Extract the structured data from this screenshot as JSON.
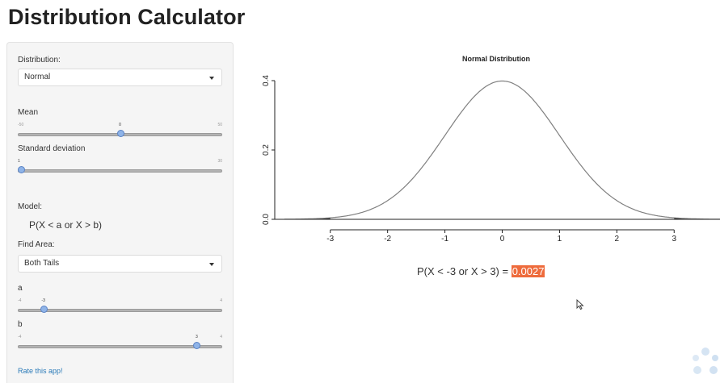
{
  "app": {
    "title": "Distribution Calculator"
  },
  "sidebar": {
    "distribution": {
      "label": "Distribution:",
      "selected": "Normal"
    },
    "mean": {
      "label": "Mean",
      "min": "-50",
      "max": "50",
      "value": "0",
      "value_num": 0,
      "range": [
        -50,
        50
      ]
    },
    "sd": {
      "label": "Standard deviation",
      "min": "1",
      "max": "30",
      "value": "1",
      "value_num": 1,
      "range": [
        1,
        30
      ]
    },
    "model": {
      "label": "Model:",
      "text": "P(X < a or X > b)"
    },
    "find_area": {
      "label": "Find Area:",
      "selected": "Both Tails"
    },
    "a": {
      "label": "a",
      "min": "-4",
      "max": "4",
      "value": "-3",
      "value_num": -3,
      "range": [
        -4,
        4
      ]
    },
    "b": {
      "label": "b",
      "min": "-4",
      "max": "4",
      "value": "3",
      "value_num": 3,
      "range": [
        -4,
        4
      ]
    },
    "rate_link": "Rate this app!"
  },
  "result": {
    "prefix": "P(X < -3 or X > 3) = ",
    "value": "0.0027"
  },
  "chart_data": {
    "type": "line",
    "title": "Normal Distribution",
    "xlabel": "",
    "ylabel": "",
    "xlim": [
      -3.8,
      3.8
    ],
    "ylim": [
      0,
      0.4
    ],
    "x_ticks": [
      "-3",
      "-2",
      "-1",
      "0",
      "1",
      "2",
      "3"
    ],
    "y_ticks": [
      "0.0",
      "0.2",
      "0.4"
    ],
    "series": [
      {
        "name": "density",
        "function": "normal pdf",
        "mean": 0,
        "sd": 1
      }
    ],
    "shaded": [
      {
        "from": -3.8,
        "to": -3
      },
      {
        "from": 3,
        "to": 3.8
      }
    ]
  },
  "colors": {
    "highlight": "#ee6b3c",
    "link": "#2a7ab8",
    "handle": "#8fb4e8",
    "curve": "#808080"
  },
  "icons": {
    "cursor": "mouse-pointer-icon",
    "loader": "loading-spinner-icon"
  }
}
